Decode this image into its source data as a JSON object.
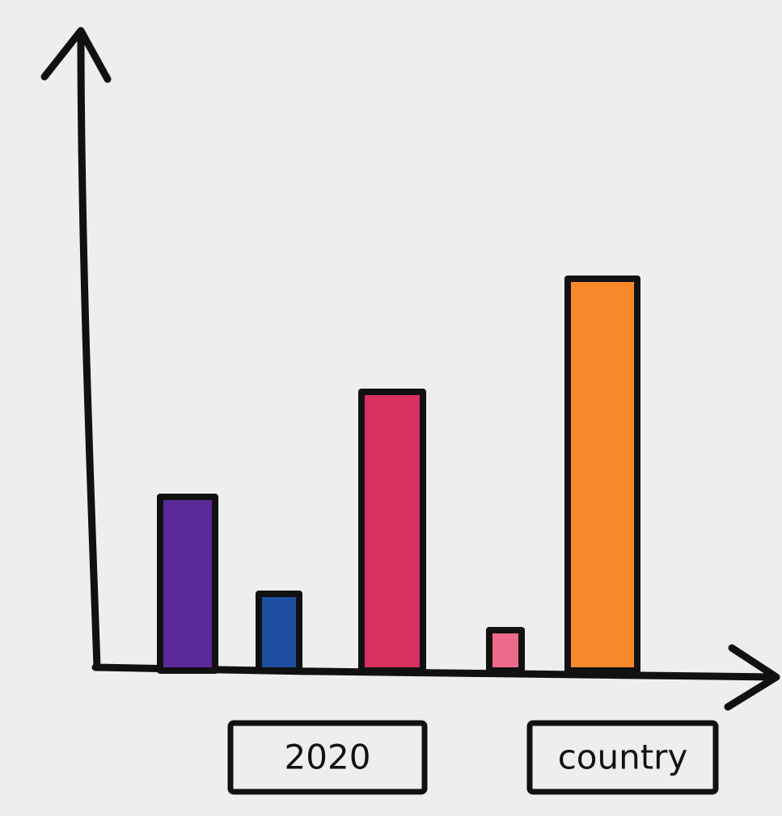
{
  "chart_data": {
    "type": "bar",
    "categories": [
      null,
      null,
      "2020",
      null,
      "country"
    ],
    "values": [
      215,
      95,
      345,
      50,
      485
    ],
    "colors": [
      "#5a2a9a",
      "#1f4fa0",
      "#d83060",
      "#ee6a8a",
      "#f7892a"
    ],
    "ylim": [
      0,
      790
    ]
  }
}
